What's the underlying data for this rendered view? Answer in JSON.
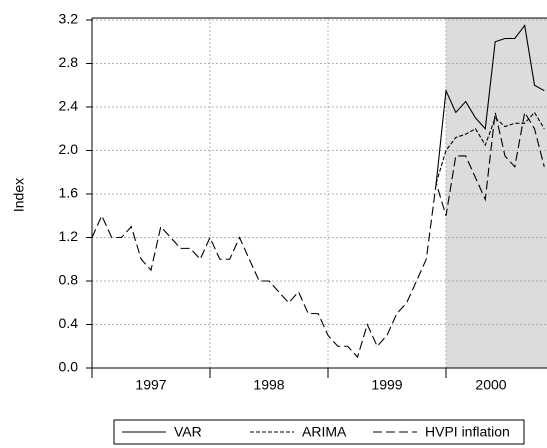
{
  "chart_data": {
    "type": "line",
    "y_label": "Index",
    "x": [
      1997,
      1997.083,
      1997.167,
      1997.25,
      1997.333,
      1997.417,
      1997.5,
      1997.583,
      1997.667,
      1997.75,
      1997.833,
      1997.917,
      1998,
      1998.083,
      1998.167,
      1998.25,
      1998.333,
      1998.417,
      1998.5,
      1998.583,
      1998.667,
      1998.75,
      1998.833,
      1998.917,
      1999,
      1999.083,
      1999.167,
      1999.25,
      1999.333,
      1999.417,
      1999.5,
      1999.583,
      1999.667,
      1999.75,
      1999.833,
      1999.917,
      2000,
      2000.083,
      2000.167,
      2000.25,
      2000.333,
      2000.417,
      2000.5,
      2000.583,
      2000.667,
      2000.75,
      2000.833
    ],
    "series": [
      {
        "name": "VAR",
        "color": "#000000",
        "dash": "solid",
        "values": [
          null,
          null,
          null,
          null,
          null,
          null,
          null,
          null,
          null,
          null,
          null,
          null,
          null,
          null,
          null,
          null,
          null,
          null,
          null,
          null,
          null,
          null,
          null,
          null,
          null,
          null,
          null,
          null,
          null,
          null,
          null,
          null,
          null,
          null,
          null,
          1.7,
          2.55,
          2.35,
          2.45,
          2.3,
          2.2,
          3.0,
          3.03,
          3.03,
          3.15,
          2.6,
          2.55
        ]
      },
      {
        "name": "ARIMA",
        "color": "#000000",
        "dash": "short",
        "values": [
          null,
          null,
          null,
          null,
          null,
          null,
          null,
          null,
          null,
          null,
          null,
          null,
          null,
          null,
          null,
          null,
          null,
          null,
          null,
          null,
          null,
          null,
          null,
          null,
          null,
          null,
          null,
          null,
          null,
          null,
          null,
          null,
          null,
          null,
          null,
          1.7,
          2.0,
          2.12,
          2.15,
          2.2,
          2.05,
          2.3,
          2.22,
          2.25,
          2.25,
          2.35,
          2.2
        ]
      },
      {
        "name": "HVPI inflation",
        "color": "#000000",
        "dash": "long",
        "values": [
          1.2,
          1.4,
          1.2,
          1.2,
          1.3,
          1.0,
          0.9,
          1.3,
          1.2,
          1.1,
          1.1,
          1.0,
          1.2,
          1.0,
          1.0,
          1.2,
          1.0,
          0.8,
          0.8,
          0.7,
          0.6,
          0.7,
          0.5,
          0.5,
          0.3,
          0.2,
          0.2,
          0.1,
          0.4,
          0.2,
          0.3,
          0.5,
          0.6,
          0.8,
          1.0,
          1.7,
          1.4,
          1.95,
          1.95,
          1.75,
          1.55,
          2.35,
          1.95,
          1.85,
          2.35,
          2.2,
          1.85
        ]
      }
    ],
    "xlim": [
      1997,
      2000.856
    ],
    "xticks": [
      1997,
      1998,
      1999,
      2000
    ],
    "ylim": [
      0,
      3.2
    ],
    "yticks": [
      {
        "value": 0,
        "label": "0.0"
      },
      0.4,
      0.8,
      1.2,
      1.6,
      {
        "value": 2,
        "label": "2.0"
      },
      2.4,
      2.8,
      3.2
    ],
    "shaded_from": 2000,
    "shade_color": "#dcdcdc",
    "grid": true,
    "legend": "bottom"
  }
}
